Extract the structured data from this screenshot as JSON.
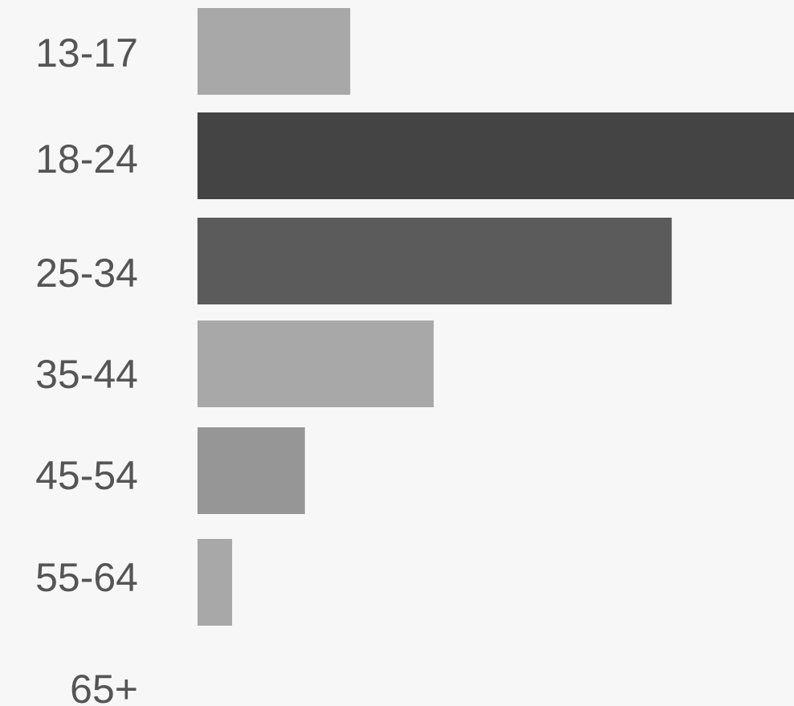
{
  "chart_data": {
    "type": "bar",
    "orientation": "horizontal",
    "categories": [
      "13-17",
      "18-24",
      "25-34",
      "35-44",
      "45-54",
      "55-64",
      "65+"
    ],
    "values": [
      25.6,
      100,
      79.5,
      39.6,
      18.0,
      5.8,
      0
    ],
    "xlim": [
      0,
      100
    ],
    "grid": false,
    "legend": "none",
    "bar_colors": [
      "#a8a8a8",
      "#444444",
      "#5b5b5b",
      "#a8a8a8",
      "#969696",
      "#a8a8a8",
      "#a8a8a8"
    ],
    "background": "#f7f7f7"
  }
}
